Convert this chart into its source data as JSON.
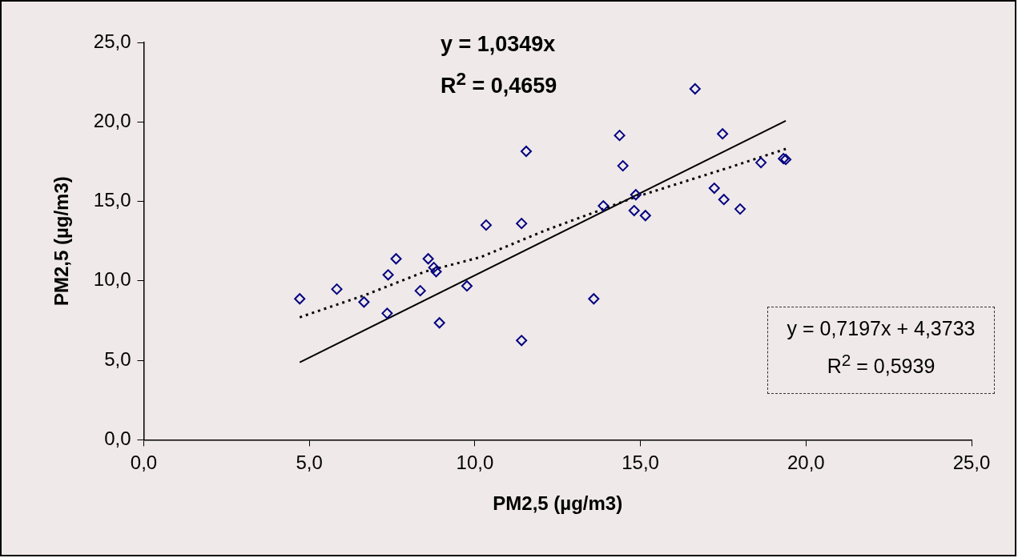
{
  "chart_data": {
    "type": "scatter",
    "xlabel": "PM2,5 (µg/m3)",
    "ylabel": "PM2,5 (µg/m3)",
    "xlim": [
      0,
      25
    ],
    "ylim": [
      0,
      25
    ],
    "xticks": [
      {
        "value": 0,
        "label": "0,0"
      },
      {
        "value": 5,
        "label": "5,0"
      },
      {
        "value": 10,
        "label": "10,0"
      },
      {
        "value": 15,
        "label": "15,0"
      },
      {
        "value": 20,
        "label": "20,0"
      },
      {
        "value": 25,
        "label": "25,0"
      }
    ],
    "yticks": [
      {
        "value": 0,
        "label": "0,0"
      },
      {
        "value": 5,
        "label": "5,0"
      },
      {
        "value": 10,
        "label": "10,0"
      },
      {
        "value": 15,
        "label": "15,0"
      },
      {
        "value": 20,
        "label": "20,0"
      },
      {
        "value": 25,
        "label": "25,0"
      }
    ],
    "grid": false,
    "legend": false,
    "series": [
      {
        "marker": "diamond",
        "color": "#000080",
        "x": [
          4.71,
          5.83,
          6.65,
          7.35,
          7.38,
          7.62,
          8.35,
          8.59,
          8.76,
          8.83,
          8.93,
          9.76,
          10.34,
          11.41,
          11.41,
          11.55,
          13.59,
          13.88,
          14.37,
          14.47,
          14.81,
          14.86,
          15.15,
          16.65,
          17.23,
          17.48,
          17.52,
          18.01,
          18.64,
          19.32,
          19.39
        ],
        "values": [
          8.87,
          9.48,
          8.67,
          7.96,
          10.38,
          11.39,
          9.38,
          11.39,
          10.84,
          10.58,
          7.36,
          9.68,
          13.51,
          13.61,
          6.25,
          18.15,
          8.87,
          14.72,
          19.15,
          17.24,
          14.42,
          15.42,
          14.11,
          22.08,
          15.83,
          19.25,
          15.12,
          14.52,
          17.44,
          17.69,
          17.64
        ]
      },
      {
        "type": "line",
        "marker": "none",
        "color": "#000000",
        "line_style": "solid",
        "x": [
          4.71,
          19.39
        ],
        "values": [
          4.87,
          20.07
        ]
      },
      {
        "type": "line",
        "marker": "none",
        "color": "#000000",
        "line_style": "dotted",
        "x": [
          4.71,
          6.7,
          8.49,
          10.17,
          12.11,
          14.85,
          17.69,
          19.39
        ],
        "values": [
          7.71,
          9.12,
          10.58,
          11.49,
          13.16,
          15.27,
          17.14,
          18.3
        ]
      }
    ],
    "annotations": [
      "y = 1,0349x",
      "R$^{2}$ = 0,4659",
      "y = 0,7197x + 4,3733",
      "R$^{2}$ = 0,5939"
    ]
  }
}
